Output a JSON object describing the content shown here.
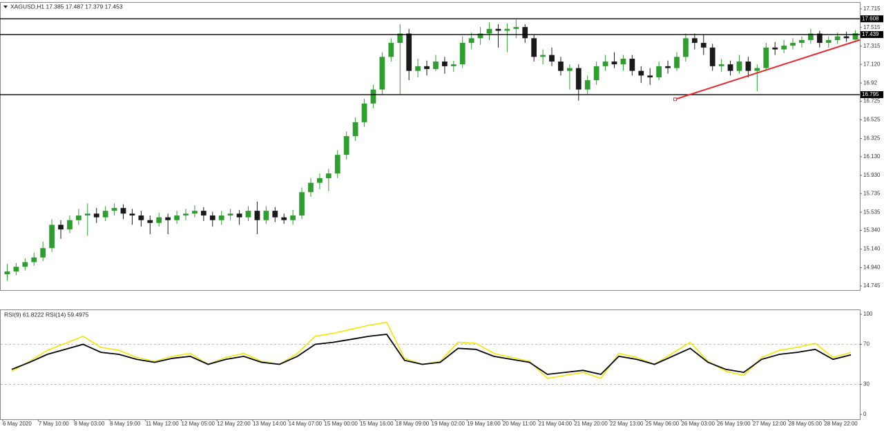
{
  "chart_data": {
    "type": "candlestick",
    "header": "XAGUSD,H1  17.385 17.487 17.379 17.453",
    "rsi_header": "RSI(9) 61.8222  RSI(14) 59.4975",
    "up_color": "#2e9e2e",
    "down_color": "#1a1a1a",
    "ylim": [
      14.7,
      17.78
    ],
    "yticks": [
      17.715,
      17.515,
      17.315,
      {
        "value": 17.12,
        "label": "17.120"
      },
      16.92,
      16.725,
      16.525,
      16.325,
      {
        "value": 16.13,
        "label": "16.130"
      },
      {
        "value": 15.93,
        "label": "15.930"
      },
      15.735,
      15.535,
      {
        "value": 15.34,
        "label": "15.340"
      },
      {
        "value": 15.14,
        "label": "15.140"
      },
      {
        "value": 14.94,
        "label": "14.940"
      },
      14.745
    ],
    "levels": [
      17.608,
      17.439,
      16.795
    ],
    "trendline": {
      "color": "#e8282b",
      "start": [
        75.3,
        16.745
      ],
      "end": [
        96,
        17.382
      ]
    },
    "x_labels": [
      "6 May 2020",
      "7 May 10:00",
      "8 May 03:00",
      "8 May 19:00",
      "11 May 12:00",
      "12 May 05:00",
      "12 May 22:00",
      "13 May 14:00",
      "14 May 07:00",
      "15 May 00:00",
      "15 May 16:00",
      "18 May 09:00",
      "19 May 02:00",
      "19 May 18:00",
      "20 May 11:00",
      "21 May 04:00",
      "21 May 20:00",
      "22 May 13:00",
      "25 May 06:00",
      "26 May 03:00",
      "26 May 19:00",
      "27 May 12:00",
      "28 May 05:00",
      "28 May 22:00"
    ],
    "candles": [
      [
        14.87,
        14.98,
        14.8,
        14.9
      ],
      [
        14.9,
        14.99,
        14.86,
        14.95
      ],
      [
        14.95,
        15.04,
        14.91,
        15.0
      ],
      [
        15.0,
        15.1,
        14.96,
        15.05
      ],
      [
        15.05,
        15.22,
        15.01,
        15.15
      ],
      [
        15.15,
        15.46,
        15.11,
        15.4
      ],
      [
        15.4,
        15.45,
        15.25,
        15.35
      ],
      [
        15.35,
        15.5,
        15.31,
        15.45
      ],
      [
        15.45,
        15.57,
        15.4,
        15.5
      ],
      [
        15.5,
        15.63,
        15.28,
        15.52
      ],
      [
        15.52,
        15.58,
        15.42,
        15.48
      ],
      [
        15.48,
        15.6,
        15.44,
        15.55
      ],
      [
        15.55,
        15.63,
        15.5,
        15.58
      ],
      [
        15.58,
        15.62,
        15.46,
        15.52
      ],
      [
        15.52,
        15.57,
        15.4,
        15.5
      ],
      [
        15.5,
        15.55,
        15.38,
        15.45
      ],
      [
        15.45,
        15.5,
        15.3,
        15.42
      ],
      [
        15.42,
        15.53,
        15.38,
        15.48
      ],
      [
        15.48,
        15.52,
        15.3,
        15.45
      ],
      [
        15.45,
        15.55,
        15.41,
        15.5
      ],
      [
        15.5,
        15.57,
        15.45,
        15.52
      ],
      [
        15.52,
        15.61,
        15.48,
        15.55
      ],
      [
        15.55,
        15.59,
        15.44,
        15.5
      ],
      [
        15.5,
        15.54,
        15.38,
        15.45
      ],
      [
        15.45,
        15.55,
        15.4,
        15.5
      ],
      [
        15.5,
        15.57,
        15.45,
        15.52
      ],
      [
        15.52,
        15.56,
        15.4,
        15.48
      ],
      [
        15.48,
        15.6,
        15.44,
        15.55
      ],
      [
        15.55,
        15.65,
        15.3,
        15.45
      ],
      [
        15.45,
        15.6,
        15.41,
        15.55
      ],
      [
        15.55,
        15.59,
        15.43,
        15.48
      ],
      [
        15.48,
        15.52,
        15.41,
        15.45
      ],
      [
        15.45,
        15.56,
        15.4,
        15.5
      ],
      [
        15.5,
        15.8,
        15.46,
        15.75
      ],
      [
        15.75,
        15.9,
        15.7,
        15.85
      ],
      [
        15.85,
        15.95,
        15.78,
        15.9
      ],
      [
        15.9,
        16.0,
        15.76,
        15.95
      ],
      [
        15.95,
        16.2,
        15.9,
        16.15
      ],
      [
        16.15,
        16.4,
        16.1,
        16.35
      ],
      [
        16.35,
        16.55,
        16.3,
        16.5
      ],
      [
        16.5,
        16.75,
        16.45,
        16.7
      ],
      [
        16.7,
        16.9,
        16.65,
        16.85
      ],
      [
        16.85,
        17.25,
        16.8,
        17.2
      ],
      [
        17.2,
        17.4,
        17.15,
        17.35
      ],
      [
        17.35,
        17.55,
        16.8,
        17.45
      ],
      [
        17.45,
        17.5,
        16.95,
        17.05
      ],
      [
        17.05,
        17.18,
        16.98,
        17.1
      ],
      [
        17.1,
        17.16,
        17.0,
        17.07
      ],
      [
        17.07,
        17.22,
        17.05,
        17.15
      ],
      [
        17.15,
        17.2,
        17.02,
        17.1
      ],
      [
        17.1,
        17.16,
        17.04,
        17.12
      ],
      [
        17.12,
        17.42,
        17.08,
        17.35
      ],
      [
        17.35,
        17.46,
        17.28,
        17.4
      ],
      [
        17.4,
        17.52,
        17.33,
        17.45
      ],
      [
        17.45,
        17.57,
        17.38,
        17.5
      ],
      [
        17.5,
        17.55,
        17.3,
        17.48
      ],
      [
        17.48,
        17.56,
        17.25,
        17.5
      ],
      [
        17.5,
        17.6,
        17.4,
        17.52
      ],
      [
        17.52,
        17.55,
        17.35,
        17.4
      ],
      [
        17.4,
        17.44,
        17.15,
        17.2
      ],
      [
        17.2,
        17.28,
        17.12,
        17.22
      ],
      [
        17.22,
        17.3,
        17.1,
        17.15
      ],
      [
        17.15,
        17.2,
        17.0,
        17.05
      ],
      [
        17.05,
        17.12,
        16.85,
        17.08
      ],
      [
        17.08,
        17.12,
        16.73,
        16.85
      ],
      [
        16.85,
        17.0,
        16.8,
        16.95
      ],
      [
        16.95,
        17.15,
        16.9,
        17.1
      ],
      [
        17.1,
        17.22,
        17.05,
        17.15
      ],
      [
        17.15,
        17.25,
        17.08,
        17.12
      ],
      [
        17.12,
        17.22,
        17.05,
        17.18
      ],
      [
        17.18,
        17.22,
        17.0,
        17.05
      ],
      [
        17.05,
        17.1,
        16.92,
        17.0
      ],
      [
        17.0,
        17.08,
        16.9,
        16.98
      ],
      [
        16.98,
        17.15,
        16.95,
        17.1
      ],
      [
        17.1,
        17.16,
        17.02,
        17.08
      ],
      [
        17.08,
        17.25,
        17.05,
        17.2
      ],
      [
        17.2,
        17.45,
        17.15,
        17.4
      ],
      [
        17.4,
        17.45,
        17.28,
        17.35
      ],
      [
        17.35,
        17.44,
        17.22,
        17.3
      ],
      [
        17.3,
        17.34,
        17.05,
        17.1
      ],
      [
        17.1,
        17.18,
        17.04,
        17.12
      ],
      [
        17.12,
        17.16,
        17.0,
        17.05
      ],
      [
        17.05,
        17.22,
        17.02,
        17.15
      ],
      [
        17.15,
        17.2,
        16.98,
        17.05
      ],
      [
        17.05,
        17.12,
        16.83,
        17.08
      ],
      [
        17.08,
        17.35,
        17.05,
        17.3
      ],
      [
        17.3,
        17.36,
        17.22,
        17.28
      ],
      [
        17.28,
        17.38,
        17.24,
        17.32
      ],
      [
        17.32,
        17.4,
        17.28,
        17.35
      ],
      [
        17.35,
        17.42,
        17.3,
        17.38
      ],
      [
        17.38,
        17.5,
        17.34,
        17.45
      ],
      [
        17.45,
        17.48,
        17.3,
        17.35
      ],
      [
        17.35,
        17.42,
        17.3,
        17.38
      ],
      [
        17.38,
        17.46,
        17.34,
        17.42
      ],
      [
        17.42,
        17.47,
        17.36,
        17.4
      ],
      [
        17.385,
        17.487,
        17.379,
        17.453
      ]
    ],
    "rsi": {
      "ylim": [
        0,
        100
      ],
      "yticks": [
        100,
        70,
        30,
        0
      ],
      "levels": [
        70,
        30
      ],
      "series": [
        {
          "name": "RSI(9)",
          "color": "#f2e600",
          "values": [
            43,
            53,
            64,
            71,
            78,
            67,
            64,
            57,
            53,
            58,
            61,
            50,
            57,
            61,
            53,
            50,
            61,
            78,
            81,
            85,
            89,
            92,
            56,
            50,
            53,
            72,
            71,
            61,
            57,
            53,
            36,
            39,
            42,
            36,
            61,
            57,
            50,
            61,
            72,
            53,
            43,
            39,
            57,
            64,
            67,
            71,
            57,
            61.8
          ]
        },
        {
          "name": "RSI(14)",
          "color": "#000000",
          "values": [
            45,
            52,
            60,
            65,
            70,
            62,
            60,
            55,
            52,
            56,
            58,
            50,
            55,
            58,
            52,
            50,
            58,
            70,
            72,
            75,
            78,
            80,
            54,
            50,
            52,
            66,
            65,
            58,
            55,
            52,
            40,
            42,
            44,
            40,
            58,
            55,
            50,
            58,
            66,
            52,
            45,
            42,
            55,
            60,
            62,
            65,
            55,
            59.5
          ]
        }
      ]
    }
  }
}
